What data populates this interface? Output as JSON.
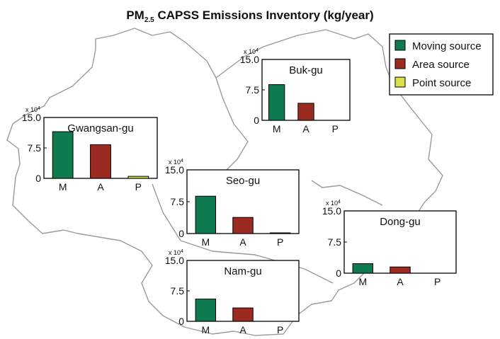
{
  "figure": {
    "title_prefix": "PM",
    "title_subscript": "2.5",
    "title_rest": " CAPSS Emissions Inventory (kg/year)"
  },
  "colors": {
    "moving": "#0e7a4f",
    "area": "#9b2a20",
    "point": "#d8e04a"
  },
  "legend": [
    {
      "label": "Moving source",
      "color": "#0e7a4f"
    },
    {
      "label": "Area source",
      "color": "#9b2a20"
    },
    {
      "label": "Point source",
      "color": "#d8e04a"
    }
  ],
  "chart_data": [
    {
      "type": "bar",
      "title": "Buk-gu",
      "categories": [
        "M",
        "A",
        "P"
      ],
      "values": [
        8.8,
        4.2,
        0
      ],
      "ylim": [
        0,
        15
      ],
      "yticks": [
        "0",
        "7.5",
        "15.0"
      ],
      "multiplier": "x 10",
      "multiplier_exp": "4"
    },
    {
      "type": "bar",
      "title": "Gwangsan-gu",
      "categories": [
        "M",
        "A",
        "P"
      ],
      "values": [
        11.5,
        8.3,
        0.5
      ],
      "ylim": [
        0,
        15
      ],
      "yticks": [
        "0",
        "7.5",
        "15.0"
      ],
      "multiplier": "x 10",
      "multiplier_exp": "4"
    },
    {
      "type": "bar",
      "title": "Seo-gu",
      "categories": [
        "M",
        "A",
        "P"
      ],
      "values": [
        8.8,
        3.8,
        0.15
      ],
      "ylim": [
        0,
        15
      ],
      "yticks": [
        "0",
        "7.5",
        "15.0"
      ],
      "multiplier": "x 10",
      "multiplier_exp": "4"
    },
    {
      "type": "bar",
      "title": "Dong-gu",
      "categories": [
        "M",
        "A",
        "P"
      ],
      "values": [
        2.3,
        1.5,
        0
      ],
      "ylim": [
        0,
        15
      ],
      "yticks": [
        "0",
        "7.5",
        "15.0"
      ],
      "multiplier": "x 10",
      "multiplier_exp": "4"
    },
    {
      "type": "bar",
      "title": "Nam-gu",
      "categories": [
        "M",
        "A",
        "P"
      ],
      "values": [
        5.5,
        3.3,
        0
      ],
      "ylim": [
        0,
        15
      ],
      "yticks": [
        "0",
        "7.5",
        "15.0"
      ],
      "multiplier": "x 10",
      "multiplier_exp": "4"
    }
  ]
}
